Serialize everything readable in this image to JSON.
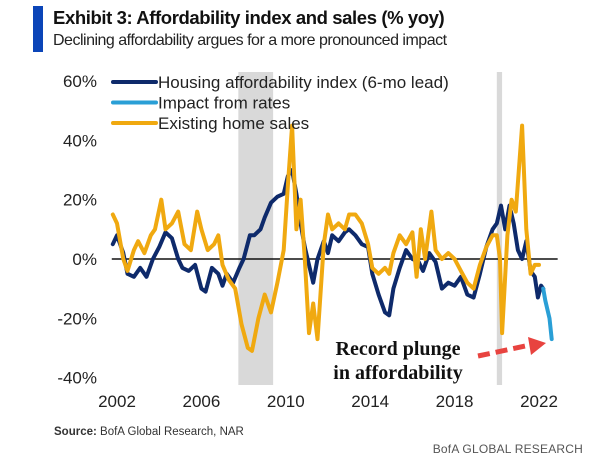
{
  "header": {
    "title": "Exhibit 3: Affordability index and sales (% yoy)",
    "subtitle": "Declining affordability argues for a more pronounced impact",
    "accent_color": "#0b45b8"
  },
  "footer": {
    "source_label": "Source:",
    "source_text": "BofA Global Research, NAR",
    "brand": "BofA GLOBAL RESEARCH"
  },
  "chart_data": {
    "type": "line",
    "title": "Exhibit 3: Affordability index and sales (% yoy)",
    "subtitle": "Declining affordability argues for a more pronounced impact",
    "xlabel": "",
    "ylabel": "",
    "xlim": [
      2001.8,
      2023.0
    ],
    "ylim": [
      -40,
      60
    ],
    "x_ticks": [
      2002,
      2006,
      2010,
      2014,
      2018,
      2022
    ],
    "x_tick_labels": [
      "2002",
      "2006",
      "2010",
      "2014",
      "2018",
      "2022"
    ],
    "y_ticks": [
      -40,
      -20,
      0,
      20,
      40,
      60
    ],
    "y_tick_labels": [
      "-40%",
      "-20%",
      "0%",
      "20%",
      "40%",
      "60%"
    ],
    "grid": false,
    "zero_line": true,
    "legend_position": "top-left",
    "recession_shading": [
      {
        "start": 2007.75,
        "end": 2009.4
      },
      {
        "start": 2020.0,
        "end": 2020.25
      }
    ],
    "series": [
      {
        "name": "Housing affordability index (6-mo lead)",
        "color": "#0e2a6b",
        "x": [
          2001.8,
          2002.0,
          2002.3,
          2002.5,
          2002.8,
          2003.1,
          2003.4,
          2003.7,
          2004.0,
          2004.3,
          2004.6,
          2004.9,
          2005.1,
          2005.4,
          2005.7,
          2006.0,
          2006.2,
          2006.5,
          2006.8,
          2007.0,
          2007.2,
          2007.5,
          2007.8,
          2008.0,
          2008.3,
          2008.5,
          2008.8,
          2009.0,
          2009.3,
          2009.6,
          2009.9,
          2010.1,
          2010.3,
          2010.5,
          2010.7,
          2010.9,
          2011.1,
          2011.3,
          2011.5,
          2011.8,
          2012.0,
          2012.2,
          2012.5,
          2012.8,
          2013.0,
          2013.3,
          2013.6,
          2013.9,
          2014.1,
          2014.4,
          2014.7,
          2014.9,
          2015.1,
          2015.4,
          2015.7,
          2016.0,
          2016.3,
          2016.5,
          2016.8,
          2017.1,
          2017.4,
          2017.7,
          2018.0,
          2018.3,
          2018.6,
          2018.9,
          2019.2,
          2019.5,
          2019.8,
          2020.0,
          2020.2,
          2020.4,
          2020.6,
          2020.8,
          2021.0,
          2021.2,
          2021.4,
          2021.6,
          2021.8,
          2021.95,
          2022.1,
          2022.2
        ],
        "values": [
          5,
          8,
          2,
          -5,
          -6,
          -3,
          -6,
          0,
          4,
          9,
          7,
          0,
          -3,
          -4,
          -2,
          -10,
          -11,
          -3,
          -5,
          -9,
          -5,
          -8,
          -3,
          0,
          8,
          8,
          10,
          14,
          19,
          21,
          22,
          28,
          30,
          22,
          12,
          4,
          -2,
          -8,
          0,
          6,
          2,
          8,
          6,
          9,
          10,
          8,
          5,
          4,
          -5,
          -12,
          -18,
          -19,
          -10,
          -3,
          3,
          0,
          -1,
          -4,
          2,
          -1,
          -10,
          -8,
          -9,
          -6,
          -12,
          -13,
          -5,
          4,
          10,
          12,
          18,
          10,
          18,
          12,
          3,
          0,
          6,
          -4,
          -6,
          -13,
          -9,
          -10
        ]
      },
      {
        "name": "Impact from rates",
        "color": "#2a9fd6",
        "x": [
          2022.2,
          2022.3,
          2022.4,
          2022.5,
          2022.6
        ],
        "values": [
          -10,
          -14,
          -17,
          -20,
          -27
        ]
      },
      {
        "name": "Existing home sales",
        "color": "#f0a910",
        "x": [
          2001.8,
          2002.0,
          2002.3,
          2002.5,
          2002.8,
          2003.0,
          2003.3,
          2003.6,
          2003.8,
          2004.1,
          2004.3,
          2004.6,
          2004.9,
          2005.2,
          2005.5,
          2005.8,
          2006.0,
          2006.3,
          2006.6,
          2006.8,
          2007.0,
          2007.3,
          2007.6,
          2007.9,
          2008.2,
          2008.4,
          2008.7,
          2009.0,
          2009.3,
          2009.6,
          2009.9,
          2010.1,
          2010.3,
          2010.5,
          2010.7,
          2010.9,
          2011.1,
          2011.3,
          2011.5,
          2011.8,
          2012.0,
          2012.2,
          2012.5,
          2012.8,
          2013.0,
          2013.3,
          2013.6,
          2013.9,
          2014.1,
          2014.4,
          2014.7,
          2014.9,
          2015.1,
          2015.4,
          2015.7,
          2016.0,
          2016.2,
          2016.4,
          2016.6,
          2016.9,
          2017.1,
          2017.4,
          2017.7,
          2018.0,
          2018.3,
          2018.6,
          2018.9,
          2019.2,
          2019.5,
          2019.8,
          2020.0,
          2020.15,
          2020.25,
          2020.5,
          2020.7,
          2020.9,
          2021.2,
          2021.4,
          2021.6,
          2021.8,
          2022.0
        ],
        "values": [
          15,
          12,
          0,
          -4,
          3,
          6,
          2,
          8,
          10,
          20,
          10,
          12,
          16,
          5,
          3,
          16,
          10,
          3,
          5,
          8,
          -2,
          -7,
          -10,
          -22,
          -30,
          -31,
          -20,
          -12,
          -18,
          -8,
          3,
          25,
          45,
          10,
          20,
          0,
          -25,
          -15,
          -27,
          5,
          15,
          10,
          12,
          10,
          15,
          15,
          12,
          5,
          -3,
          -5,
          -3,
          -5,
          2,
          8,
          5,
          9,
          -6,
          10,
          0,
          16,
          3,
          0,
          2,
          0,
          -4,
          -8,
          -10,
          -2,
          4,
          8,
          8,
          0,
          -25,
          8,
          20,
          16,
          45,
          10,
          -5,
          -2,
          -2
        ]
      }
    ],
    "annotations": [
      {
        "text_lines": [
          "Record plunge",
          "in affordability"
        ],
        "arrow_color": "#e8433f",
        "arrow_style": "dashed",
        "points_to": {
          "x": 2022.6,
          "y": -27
        }
      }
    ]
  }
}
